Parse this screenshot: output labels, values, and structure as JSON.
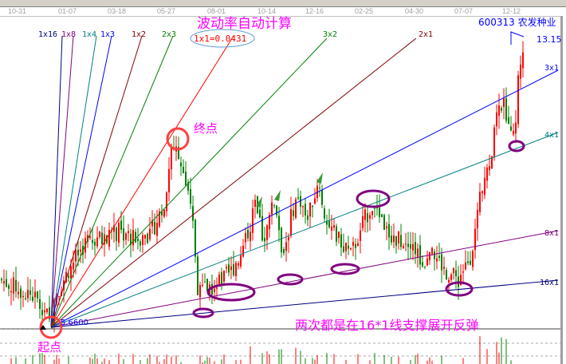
{
  "toolbar": {
    "icons": [
      "toolbar-icons"
    ]
  },
  "date_axis": [
    "10-31",
    "01-07",
    "03-18",
    "05-27",
    "08-01",
    "10-14",
    "12-16",
    "02-25",
    "04-30",
    "07-07",
    "12-12"
  ],
  "title": "波动率自动计算",
  "stock": {
    "code": "600313",
    "name": "农发种业",
    "last_price": "13.15"
  },
  "start_price_label": "5.6600",
  "start_label": "起点",
  "end_label": "终点",
  "annotation": "两次都是在16*1线支撑展开反弹",
  "fan_ratio_label": "1x1=0.0431",
  "fan_lines": [
    {
      "label": "1x16",
      "color": "#000080"
    },
    {
      "label": "1x8",
      "color": "#800080"
    },
    {
      "label": "1x4",
      "color": "#008080"
    },
    {
      "label": "1x3",
      "color": "#0000ff"
    },
    {
      "label": "1x2",
      "color": "#800000"
    },
    {
      "label": "2x3",
      "color": "#008000"
    },
    {
      "label": "1x1",
      "color": "#ff0000"
    },
    {
      "label": "3x2",
      "color": "#008000"
    },
    {
      "label": "2x1",
      "color": "#800000"
    },
    {
      "label": "3x1",
      "color": "#0000ff"
    },
    {
      "label": "4x1",
      "color": "#008080"
    },
    {
      "label": "8x1",
      "color": "#800080"
    },
    {
      "label": "16x1",
      "color": "#000080"
    }
  ],
  "colors": {
    "up": "#ff0000",
    "down": "#008000",
    "annotation": "#ff00ff",
    "highlight": "#800080"
  },
  "chart_data": {
    "type": "candlestick",
    "title": "波动率自动计算",
    "price_path_approx": [
      6.91,
      6.49,
      6.18,
      5.66,
      6.49,
      7.32,
      7.95,
      7.95,
      8.16,
      7.95,
      8.16,
      8.78,
      10.24,
      10.44,
      9.2,
      8.16,
      6.7,
      6.7,
      6.8,
      7.12,
      7.74,
      8.78,
      7.95,
      8.99,
      7.53,
      8.99,
      8.57,
      9.4,
      8.36,
      7.95,
      7.53,
      8.36,
      8.99,
      8.16,
      7.95,
      7.95,
      7.32,
      7.53,
      7.12,
      6.91,
      7.53,
      8.36,
      9.4,
      10.03,
      11.69,
      11.07,
      10.44,
      12.11,
      12.94
    ],
    "start_low": 5.66,
    "last": 13.15,
    "grid": false
  }
}
